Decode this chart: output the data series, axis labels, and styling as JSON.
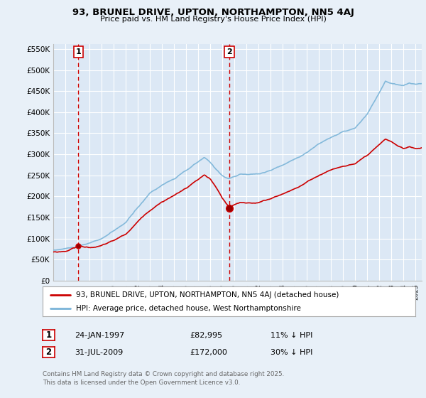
{
  "title_line1": "93, BRUNEL DRIVE, UPTON, NORTHAMPTON, NN5 4AJ",
  "title_line2": "Price paid vs. HM Land Registry's House Price Index (HPI)",
  "background_color": "#e8f0f8",
  "plot_bg_color": "#dce8f5",
  "grid_color": "#c8d8e8",
  "hpi_color": "#7ab4d8",
  "price_color": "#cc0000",
  "vline_color": "#cc0000",
  "purchase1_date": 1997.07,
  "purchase1_price": 82995,
  "purchase1_label": "1",
  "purchase2_date": 2009.58,
  "purchase2_price": 172000,
  "purchase2_label": "2",
  "legend_label1": "93, BRUNEL DRIVE, UPTON, NORTHAMPTON, NN5 4AJ (detached house)",
  "legend_label2": "HPI: Average price, detached house, West Northamptonshire",
  "table_row1": [
    "1",
    "24-JAN-1997",
    "£82,995",
    "11% ↓ HPI"
  ],
  "table_row2": [
    "2",
    "31-JUL-2009",
    "£172,000",
    "30% ↓ HPI"
  ],
  "footnote": "Contains HM Land Registry data © Crown copyright and database right 2025.\nThis data is licensed under the Open Government Licence v3.0.",
  "ylim": [
    0,
    562500
  ],
  "yticks": [
    0,
    50000,
    100000,
    150000,
    200000,
    250000,
    300000,
    350000,
    400000,
    450000,
    500000,
    550000
  ],
  "ytick_labels": [
    "£0",
    "£50K",
    "£100K",
    "£150K",
    "£200K",
    "£250K",
    "£300K",
    "£350K",
    "£400K",
    "£450K",
    "£500K",
    "£550K"
  ],
  "xmin": 1995.0,
  "xmax": 2025.5
}
